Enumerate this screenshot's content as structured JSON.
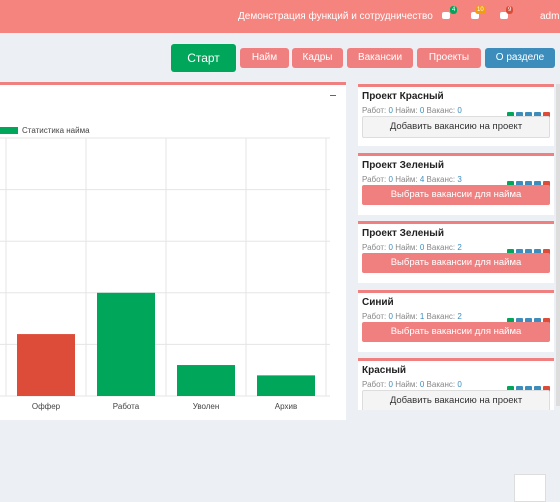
{
  "topbar": {
    "demo": "Демонстрация функций и сотрудничество",
    "badges": [
      4,
      10,
      9
    ],
    "user": "admi"
  },
  "toolbar": {
    "buttons": [
      "Старт",
      "Найм",
      "Кадры",
      "Вакансии",
      "Проекты",
      "О разделе"
    ]
  },
  "chart_data": {
    "type": "bar",
    "legend": "Статистика найма",
    "categories": [
      "Оффер",
      "Работа",
      "Уволен",
      "Архив"
    ],
    "values": [
      1.2,
      2,
      0.6,
      0.4
    ],
    "colors": [
      "#dd4b39",
      "#00a65a",
      "#00a65a",
      "#00a65a"
    ],
    "legend_color": "#00a65a",
    "ylim": [
      0,
      5
    ],
    "yticks": [
      0,
      1,
      2,
      3,
      4,
      5
    ],
    "grid": true
  },
  "projects": [
    {
      "title": "Проект Красный",
      "stats": [
        {
          "label": "Работ:",
          "value": 0
        },
        {
          "label": "Найм:",
          "value": 0
        },
        {
          "label": "Ваканс:",
          "value": 0
        }
      ],
      "action": "Добавить вакансию на проект"
    },
    {
      "title": "Проект Зеленый",
      "stats": [
        {
          "label": "Работ:",
          "value": 0
        },
        {
          "label": "Найм:",
          "value": 4
        },
        {
          "label": "Ваканс:",
          "value": 3
        }
      ],
      "action": "Выбрать вакансии для найма"
    },
    {
      "title": "Проект Зеленый",
      "stats": [
        {
          "label": "Работ:",
          "value": 0
        },
        {
          "label": "Найм:",
          "value": 0
        },
        {
          "label": "Ваканс:",
          "value": 2
        }
      ],
      "action": "Выбрать вакансии для найма"
    },
    {
      "title": "Синий",
      "stats": [
        {
          "label": "Работ:",
          "value": 0
        },
        {
          "label": "Найм:",
          "value": 1
        },
        {
          "label": "Ваканс:",
          "value": 2
        }
      ],
      "action": "Выбрать вакансии для найма"
    },
    {
      "title": "Красный",
      "stats": [
        {
          "label": "Работ:",
          "value": 0
        },
        {
          "label": "Найм:",
          "value": 0
        },
        {
          "label": "Ваканс:",
          "value": 0
        }
      ],
      "action": "Добавить вакансию на проект"
    }
  ]
}
